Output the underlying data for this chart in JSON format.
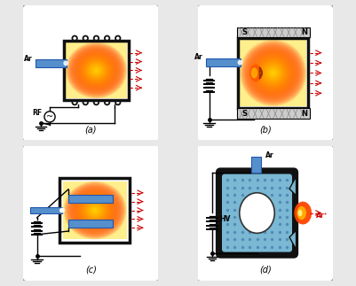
{
  "fig_w": 4.01,
  "fig_h": 3.23,
  "dpi": 100,
  "bg_color": "#e8e8e8",
  "panel_bg": "#ffffff",
  "panel_edge": "#aaaaaa",
  "plasma_inner": "#ff4400",
  "plasma_outer": "#ffcc00",
  "electrode_color": "#5590cc",
  "electrode_edge": "#2255aa",
  "coil_color": "#111111",
  "box_color": "#111111",
  "magnet_color": "#cccccc",
  "magnet_edge": "#666666",
  "beam_color": "#cc0000",
  "wire_color": "#000000",
  "label_a": "(a)",
  "label_b": "(b)",
  "label_c": "(c)",
  "label_d": "(d)",
  "text_Ar": "Ar",
  "text_RF": "RF",
  "text_HV": "HV",
  "text_S": "S",
  "text_N": "N",
  "text_Arion": "Ar⁺",
  "chamber_blue": "#7ab8d4",
  "chamber_dot": "#4477aa"
}
